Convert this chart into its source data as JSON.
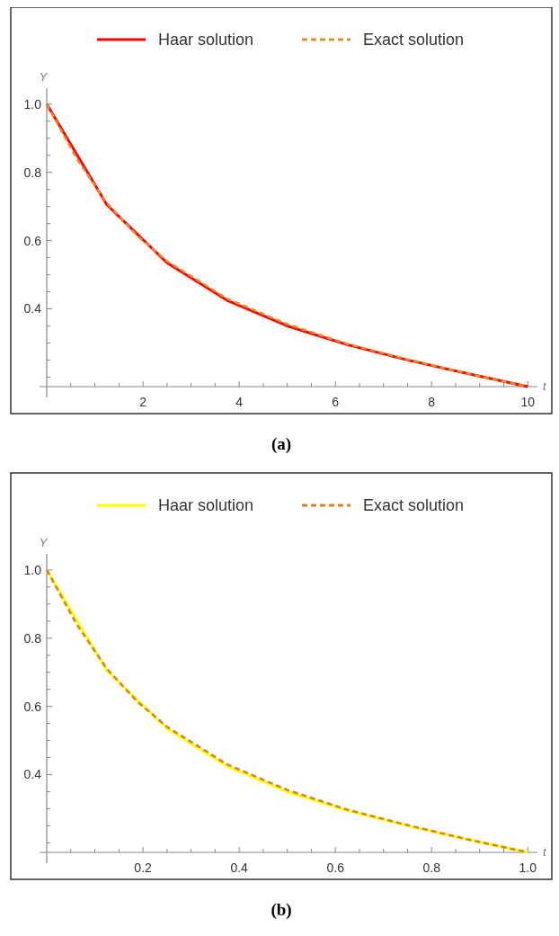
{
  "chart_data": [
    {
      "type": "line",
      "xlabel": "t",
      "ylabel": "Y",
      "legend": "top",
      "line_style": "solid",
      "marker": "none",
      "grid": false,
      "xlim": [
        -0.15,
        10.2
      ],
      "ylim": [
        0.172,
        1.047
      ],
      "xticks": [
        {
          "value": 0.5,
          "label": null
        },
        {
          "value": 1,
          "label": null
        },
        {
          "value": 1.5,
          "label": null
        },
        2,
        {
          "value": 2.5,
          "label": null
        },
        {
          "value": 3,
          "label": null
        },
        {
          "value": 3.5,
          "label": null
        },
        4,
        {
          "value": 4.5,
          "label": null
        },
        {
          "value": 5,
          "label": null
        },
        {
          "value": 5.5,
          "label": null
        },
        6,
        {
          "value": 6.5,
          "label": null
        },
        {
          "value": 7,
          "label": null
        },
        {
          "value": 7.5,
          "label": null
        },
        8,
        {
          "value": 8.5,
          "label": null
        },
        {
          "value": 9,
          "label": null
        },
        {
          "value": 9.5,
          "label": null
        },
        10
      ],
      "yticks": [
        {
          "value": 0.2,
          "label": null
        },
        {
          "value": 0.25,
          "label": null
        },
        {
          "value": 0.3,
          "label": null
        },
        {
          "value": 0.35,
          "label": null
        },
        0.4,
        {
          "value": 0.45,
          "label": null
        },
        {
          "value": 0.5,
          "label": null
        },
        {
          "value": 0.55,
          "label": null
        },
        0.6,
        {
          "value": 0.65,
          "label": null
        },
        {
          "value": 0.7,
          "label": null
        },
        {
          "value": 0.75,
          "label": null
        },
        0.8,
        {
          "value": 0.85,
          "label": null
        },
        {
          "value": 0.9,
          "label": null
        },
        {
          "value": 0.95,
          "label": null
        },
        {
          "value": 1,
          "label": "1.0"
        }
      ],
      "annotations": [
        "(a)"
      ],
      "series": [
        {
          "name": "Haar solution",
          "color": "#ff0000",
          "x": [
            0,
            1.25,
            2.5,
            3.75,
            5,
            6.25,
            7.5,
            8.75,
            10
          ],
          "values": [
            1,
            0.705,
            0.535,
            0.425,
            0.35,
            0.295,
            0.25,
            0.21,
            0.172
          ]
        },
        {
          "name": "Exact solution",
          "color": "#e0902a",
          "line_style": "dashed",
          "x": [
            0,
            0.625,
            1.25,
            1.875,
            2.5,
            3.75,
            5,
            6.25,
            7.5,
            8.75,
            10
          ],
          "values": [
            1,
            0.84,
            0.71,
            0.615,
            0.54,
            0.43,
            0.355,
            0.297,
            0.252,
            0.21,
            0.172
          ]
        }
      ]
    },
    {
      "type": "line",
      "xlabel": "t",
      "ylabel": "Y",
      "legend": "top",
      "line_style": "solid",
      "marker": "none",
      "grid": false,
      "xlim": [
        -0.015,
        1.02
      ],
      "ylim": [
        0.172,
        1.047
      ],
      "xticks": [
        {
          "value": 0.05,
          "label": null
        },
        {
          "value": 0.1,
          "label": null
        },
        {
          "value": 0.15,
          "label": null
        },
        0.2,
        {
          "value": 0.25,
          "label": null
        },
        {
          "value": 0.3,
          "label": null
        },
        {
          "value": 0.35,
          "label": null
        },
        0.4,
        {
          "value": 0.45,
          "label": null
        },
        {
          "value": 0.5,
          "label": null
        },
        {
          "value": 0.55,
          "label": null
        },
        0.6,
        {
          "value": 0.65,
          "label": null
        },
        {
          "value": 0.7,
          "label": null
        },
        {
          "value": 0.75,
          "label": null
        },
        0.8,
        {
          "value": 0.85,
          "label": null
        },
        {
          "value": 0.9,
          "label": null
        },
        {
          "value": 0.95,
          "label": null
        },
        {
          "value": 1,
          "label": "1.0"
        }
      ],
      "yticks": [
        {
          "value": 0.2,
          "label": null
        },
        {
          "value": 0.25,
          "label": null
        },
        {
          "value": 0.3,
          "label": null
        },
        {
          "value": 0.35,
          "label": null
        },
        0.4,
        {
          "value": 0.45,
          "label": null
        },
        {
          "value": 0.5,
          "label": null
        },
        {
          "value": 0.55,
          "label": null
        },
        0.6,
        {
          "value": 0.65,
          "label": null
        },
        {
          "value": 0.7,
          "label": null
        },
        {
          "value": 0.75,
          "label": null
        },
        0.8,
        {
          "value": 0.85,
          "label": null
        },
        {
          "value": 0.9,
          "label": null
        },
        {
          "value": 0.95,
          "label": null
        },
        {
          "value": 1,
          "label": "1.0"
        }
      ],
      "annotations": [
        "(b)"
      ],
      "series": [
        {
          "name": "Haar solution",
          "color": "#ffff00",
          "x": [
            0,
            0.125,
            0.25,
            0.375,
            0.5,
            0.625,
            0.75,
            0.875,
            1
          ],
          "values": [
            1,
            0.705,
            0.535,
            0.425,
            0.35,
            0.295,
            0.25,
            0.21,
            0.172
          ]
        },
        {
          "name": "Exact solution",
          "color": "#d9822b",
          "line_style": "dashed",
          "x": [
            0,
            0.0625,
            0.125,
            0.1875,
            0.25,
            0.375,
            0.5,
            0.625,
            0.75,
            0.875,
            1
          ],
          "values": [
            1,
            0.84,
            0.71,
            0.615,
            0.54,
            0.43,
            0.355,
            0.297,
            0.252,
            0.21,
            0.172
          ]
        }
      ]
    }
  ]
}
